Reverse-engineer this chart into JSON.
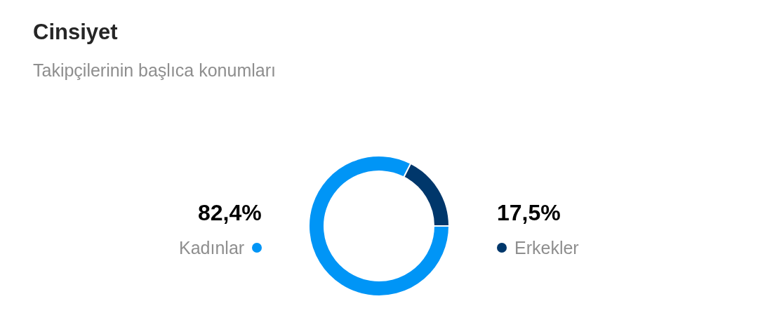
{
  "chart_data": {
    "type": "donut",
    "title": "Cinsiyet",
    "subtitle": "Takipçilerinin başlıca konumları",
    "categories": [
      "Kadınlar",
      "Erkekler"
    ],
    "values": [
      82.4,
      17.5
    ],
    "colors": [
      "#0095f6",
      "#00376b"
    ],
    "value_labels": [
      "82,4%",
      "17,5%"
    ]
  }
}
